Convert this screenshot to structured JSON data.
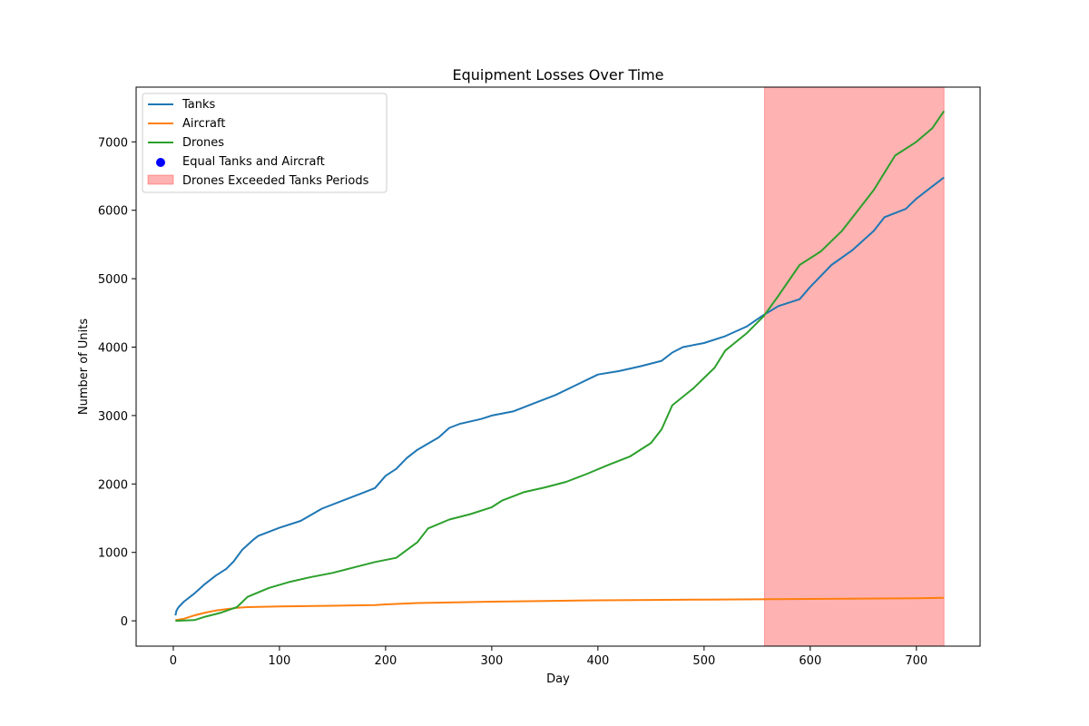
{
  "chart_data": {
    "type": "line",
    "title": "Equipment Losses Over Time",
    "xlabel": "Day",
    "ylabel": "Number of Units",
    "xlim": [
      -35,
      760
    ],
    "ylim": [
      -370,
      7800
    ],
    "xticks": [
      0,
      100,
      200,
      300,
      400,
      500,
      600,
      700
    ],
    "yticks": [
      0,
      1000,
      2000,
      3000,
      4000,
      5000,
      6000,
      7000
    ],
    "grid": false,
    "legend_position": "top-left",
    "series": [
      {
        "name": "Tanks",
        "color": "#1f77b4",
        "points": [
          [
            2,
            80
          ],
          [
            3,
            150
          ],
          [
            5,
            200
          ],
          [
            10,
            280
          ],
          [
            20,
            400
          ],
          [
            30,
            540
          ],
          [
            40,
            660
          ],
          [
            50,
            760
          ],
          [
            57,
            870
          ],
          [
            65,
            1040
          ],
          [
            75,
            1180
          ],
          [
            80,
            1240
          ],
          [
            90,
            1300
          ],
          [
            100,
            1360
          ],
          [
            120,
            1460
          ],
          [
            140,
            1640
          ],
          [
            160,
            1760
          ],
          [
            180,
            1880
          ],
          [
            190,
            1940
          ],
          [
            200,
            2120
          ],
          [
            210,
            2220
          ],
          [
            220,
            2380
          ],
          [
            230,
            2500
          ],
          [
            250,
            2680
          ],
          [
            260,
            2820
          ],
          [
            270,
            2880
          ],
          [
            290,
            2950
          ],
          [
            300,
            3000
          ],
          [
            320,
            3060
          ],
          [
            340,
            3180
          ],
          [
            360,
            3300
          ],
          [
            380,
            3450
          ],
          [
            400,
            3600
          ],
          [
            420,
            3650
          ],
          [
            440,
            3720
          ],
          [
            460,
            3800
          ],
          [
            470,
            3920
          ],
          [
            480,
            4000
          ],
          [
            500,
            4060
          ],
          [
            520,
            4160
          ],
          [
            540,
            4300
          ],
          [
            556,
            4470
          ],
          [
            570,
            4600
          ],
          [
            590,
            4700
          ],
          [
            600,
            4880
          ],
          [
            620,
            5200
          ],
          [
            640,
            5420
          ],
          [
            660,
            5700
          ],
          [
            670,
            5900
          ],
          [
            690,
            6020
          ],
          [
            700,
            6170
          ],
          [
            715,
            6350
          ],
          [
            726,
            6480
          ]
        ]
      },
      {
        "name": "Aircraft",
        "color": "#ff7f0e",
        "points": [
          [
            2,
            10
          ],
          [
            10,
            30
          ],
          [
            20,
            80
          ],
          [
            30,
            120
          ],
          [
            40,
            150
          ],
          [
            50,
            170
          ],
          [
            60,
            190
          ],
          [
            70,
            200
          ],
          [
            100,
            210
          ],
          [
            150,
            220
          ],
          [
            190,
            230
          ],
          [
            200,
            240
          ],
          [
            230,
            260
          ],
          [
            300,
            280
          ],
          [
            350,
            290
          ],
          [
            400,
            300
          ],
          [
            450,
            305
          ],
          [
            500,
            310
          ],
          [
            550,
            315
          ],
          [
            600,
            320
          ],
          [
            650,
            325
          ],
          [
            700,
            330
          ],
          [
            726,
            335
          ]
        ]
      },
      {
        "name": "Drones",
        "color": "#2ca02c",
        "points": [
          [
            2,
            0
          ],
          [
            20,
            10
          ],
          [
            30,
            60
          ],
          [
            45,
            120
          ],
          [
            60,
            200
          ],
          [
            70,
            350
          ],
          [
            90,
            480
          ],
          [
            110,
            570
          ],
          [
            130,
            640
          ],
          [
            150,
            700
          ],
          [
            170,
            780
          ],
          [
            190,
            860
          ],
          [
            210,
            920
          ],
          [
            230,
            1150
          ],
          [
            240,
            1350
          ],
          [
            260,
            1480
          ],
          [
            280,
            1560
          ],
          [
            300,
            1660
          ],
          [
            310,
            1760
          ],
          [
            330,
            1880
          ],
          [
            350,
            1950
          ],
          [
            370,
            2030
          ],
          [
            390,
            2150
          ],
          [
            410,
            2280
          ],
          [
            430,
            2400
          ],
          [
            450,
            2600
          ],
          [
            460,
            2800
          ],
          [
            470,
            3150
          ],
          [
            490,
            3400
          ],
          [
            510,
            3700
          ],
          [
            520,
            3950
          ],
          [
            540,
            4200
          ],
          [
            556,
            4450
          ],
          [
            570,
            4750
          ],
          [
            590,
            5200
          ],
          [
            610,
            5400
          ],
          [
            630,
            5700
          ],
          [
            650,
            6100
          ],
          [
            660,
            6300
          ],
          [
            670,
            6550
          ],
          [
            680,
            6800
          ],
          [
            700,
            7000
          ],
          [
            715,
            7200
          ],
          [
            726,
            7450
          ]
        ]
      }
    ],
    "scatter": {
      "name": "Equal Tanks and Aircraft",
      "color": "#0000ff",
      "points": []
    },
    "shaded_regions": [
      {
        "name": "Drones Exceeded Tanks Periods",
        "color": "#ff0000",
        "opacity": 0.3,
        "x": [
          557,
          726
        ]
      }
    ]
  }
}
